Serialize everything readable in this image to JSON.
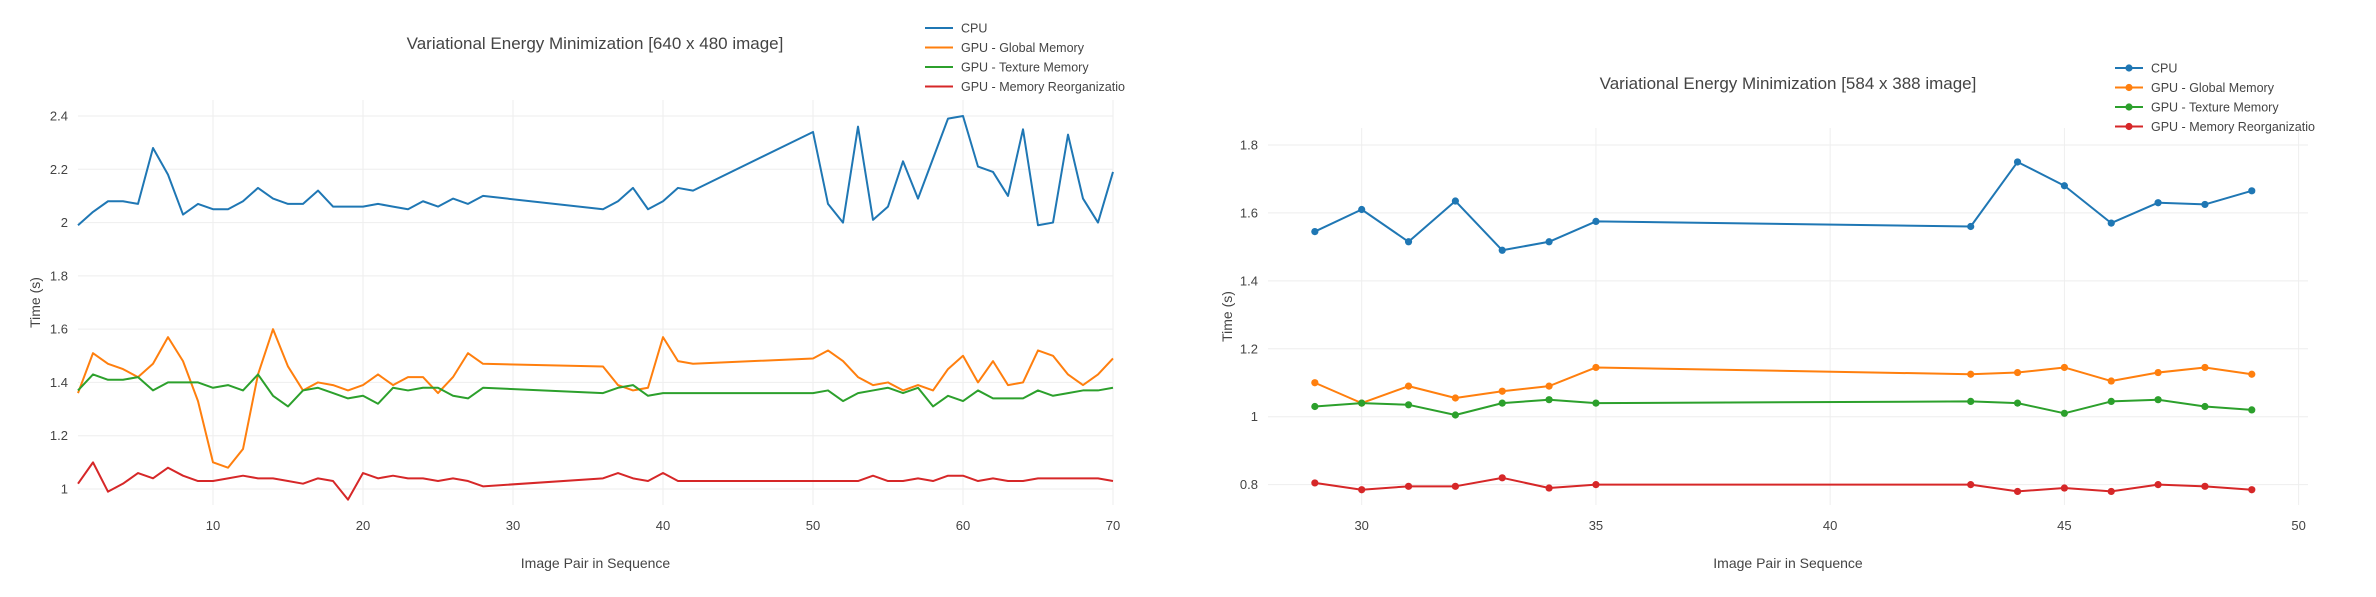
{
  "colors": {
    "cpu": "#1f77b4",
    "gpu_global": "#ff7f0e",
    "gpu_texture": "#2ca02c",
    "gpu_reorg": "#d62728"
  },
  "chart_data": [
    {
      "type": "line",
      "title": "Variational Energy Minimization [640 x 480 image]",
      "xlabel": "Image Pair in Sequence",
      "ylabel": "Time (s)",
      "xlim": [
        1,
        70
      ],
      "ylim": [
        0.94,
        2.46
      ],
      "x_ticks": [
        10,
        20,
        30,
        40,
        50,
        60,
        70
      ],
      "x_tick_labels": [
        "10",
        "20",
        "30",
        "40",
        "50",
        "60",
        "70"
      ],
      "y_ticks": [
        1,
        1.2,
        1.4,
        1.6,
        1.8,
        2,
        2.2,
        2.4
      ],
      "y_tick_labels": [
        "1",
        "1.2",
        "1.4",
        "1.6",
        "1.8",
        "2",
        "2.2",
        "2.4"
      ],
      "markers": false,
      "grid": true,
      "legend_position": "top-right",
      "x": [
        1,
        2,
        3,
        4,
        5,
        6,
        7,
        8,
        9,
        10,
        11,
        12,
        13,
        14,
        15,
        16,
        17,
        18,
        19,
        20,
        21,
        22,
        23,
        24,
        25,
        26,
        27,
        28,
        36,
        37,
        38,
        39,
        40,
        41,
        42,
        50,
        51,
        52,
        53,
        54,
        55,
        56,
        57,
        58,
        59,
        60,
        61,
        62,
        63,
        64,
        65,
        66,
        67,
        68,
        69,
        70
      ],
      "series": [
        {
          "name": "CPU",
          "color_key": "cpu",
          "values": [
            1.99,
            2.04,
            2.08,
            2.08,
            2.07,
            2.28,
            2.18,
            2.03,
            2.07,
            2.05,
            2.05,
            2.08,
            2.13,
            2.09,
            2.07,
            2.07,
            2.12,
            2.06,
            2.06,
            2.06,
            2.07,
            2.06,
            2.05,
            2.08,
            2.06,
            2.09,
            2.07,
            2.1,
            2.05,
            2.08,
            2.13,
            2.05,
            2.08,
            2.13,
            2.12,
            2.34,
            2.07,
            2.0,
            2.36,
            2.01,
            2.06,
            2.23,
            2.09,
            2.24,
            2.39,
            2.4,
            2.21,
            2.19,
            2.1,
            2.35,
            1.99,
            2.0,
            2.33,
            2.09,
            2.0,
            2.19
          ]
        },
        {
          "name": "GPU - Global Memory",
          "color_key": "gpu_global",
          "values": [
            1.36,
            1.51,
            1.47,
            1.45,
            1.42,
            1.47,
            1.57,
            1.48,
            1.33,
            1.1,
            1.08,
            1.15,
            1.43,
            1.6,
            1.46,
            1.37,
            1.4,
            1.39,
            1.37,
            1.39,
            1.43,
            1.39,
            1.42,
            1.42,
            1.36,
            1.42,
            1.51,
            1.47,
            1.46,
            1.39,
            1.37,
            1.38,
            1.57,
            1.48,
            1.47,
            1.49,
            1.52,
            1.48,
            1.42,
            1.39,
            1.4,
            1.37,
            1.39,
            1.37,
            1.45,
            1.5,
            1.4,
            1.48,
            1.39,
            1.4,
            1.52,
            1.5,
            1.43,
            1.39,
            1.43,
            1.49
          ]
        },
        {
          "name": "GPU - Texture Memory",
          "color_key": "gpu_texture",
          "values": [
            1.37,
            1.43,
            1.41,
            1.41,
            1.42,
            1.37,
            1.4,
            1.4,
            1.4,
            1.38,
            1.39,
            1.37,
            1.43,
            1.35,
            1.31,
            1.37,
            1.38,
            1.36,
            1.34,
            1.35,
            1.32,
            1.38,
            1.37,
            1.38,
            1.38,
            1.35,
            1.34,
            1.38,
            1.36,
            1.38,
            1.39,
            1.35,
            1.36,
            1.36,
            1.36,
            1.36,
            1.37,
            1.33,
            1.36,
            1.37,
            1.38,
            1.36,
            1.38,
            1.31,
            1.35,
            1.33,
            1.37,
            1.34,
            1.34,
            1.34,
            1.37,
            1.35,
            1.36,
            1.37,
            1.37,
            1.38
          ]
        },
        {
          "name": "GPU - Memory Reorganization",
          "color_key": "gpu_reorg",
          "values": [
            1.02,
            1.1,
            0.99,
            1.02,
            1.06,
            1.04,
            1.08,
            1.05,
            1.03,
            1.03,
            1.04,
            1.05,
            1.04,
            1.04,
            1.03,
            1.02,
            1.04,
            1.03,
            0.96,
            1.06,
            1.04,
            1.05,
            1.04,
            1.04,
            1.03,
            1.04,
            1.03,
            1.01,
            1.04,
            1.06,
            1.04,
            1.03,
            1.06,
            1.03,
            1.03,
            1.03,
            1.03,
            1.03,
            1.03,
            1.05,
            1.03,
            1.03,
            1.04,
            1.03,
            1.05,
            1.05,
            1.03,
            1.04,
            1.03,
            1.03,
            1.04,
            1.04,
            1.04,
            1.04,
            1.04,
            1.03
          ]
        }
      ],
      "legend_labels": [
        "CPU",
        "GPU - Global Memory",
        "GPU - Texture Memory",
        "GPU - Memory Reorganizatio"
      ]
    },
    {
      "type": "line",
      "title": "Variational Energy Minimization [584 x 388 image]",
      "xlabel": "Image Pair in Sequence",
      "ylabel": "Time (s)",
      "xlim": [
        28,
        50.2
      ],
      "ylim": [
        0.74,
        1.85
      ],
      "x_ticks": [
        30,
        35,
        40,
        45,
        50
      ],
      "x_tick_labels": [
        "30",
        "35",
        "40",
        "45",
        "50"
      ],
      "y_ticks": [
        0.8,
        1,
        1.2,
        1.4,
        1.6,
        1.8
      ],
      "y_tick_labels": [
        "0.8",
        "1",
        "1.2",
        "1.4",
        "1.6",
        "1.8"
      ],
      "markers": true,
      "grid": true,
      "legend_position": "top-right",
      "x": [
        29,
        30,
        31,
        32,
        33,
        34,
        35,
        43,
        44,
        45,
        46,
        47,
        48,
        49
      ],
      "series": [
        {
          "name": "CPU",
          "color_key": "cpu",
          "values": [
            1.545,
            1.61,
            1.515,
            1.635,
            1.49,
            1.515,
            1.575,
            1.56,
            1.75,
            1.68,
            1.57,
            1.63,
            1.625,
            1.665
          ]
        },
        {
          "name": "GPU - Global Memory",
          "color_key": "gpu_global",
          "values": [
            1.1,
            1.04,
            1.09,
            1.055,
            1.075,
            1.09,
            1.145,
            1.125,
            1.13,
            1.145,
            1.105,
            1.13,
            1.145,
            1.125
          ]
        },
        {
          "name": "GPU - Texture Memory",
          "color_key": "gpu_texture",
          "values": [
            1.03,
            1.04,
            1.035,
            1.005,
            1.04,
            1.05,
            1.04,
            1.045,
            1.04,
            1.01,
            1.045,
            1.05,
            1.03,
            1.02
          ]
        },
        {
          "name": "GPU - Memory Reorganization",
          "color_key": "gpu_reorg",
          "values": [
            0.805,
            0.785,
            0.795,
            0.795,
            0.82,
            0.79,
            0.8,
            0.8,
            0.78,
            0.79,
            0.78,
            0.8,
            0.795,
            0.785
          ]
        }
      ],
      "legend_labels": [
        "CPU",
        "GPU - Global Memory",
        "GPU - Texture Memory",
        "GPU - Memory Reorganizatio"
      ]
    }
  ]
}
